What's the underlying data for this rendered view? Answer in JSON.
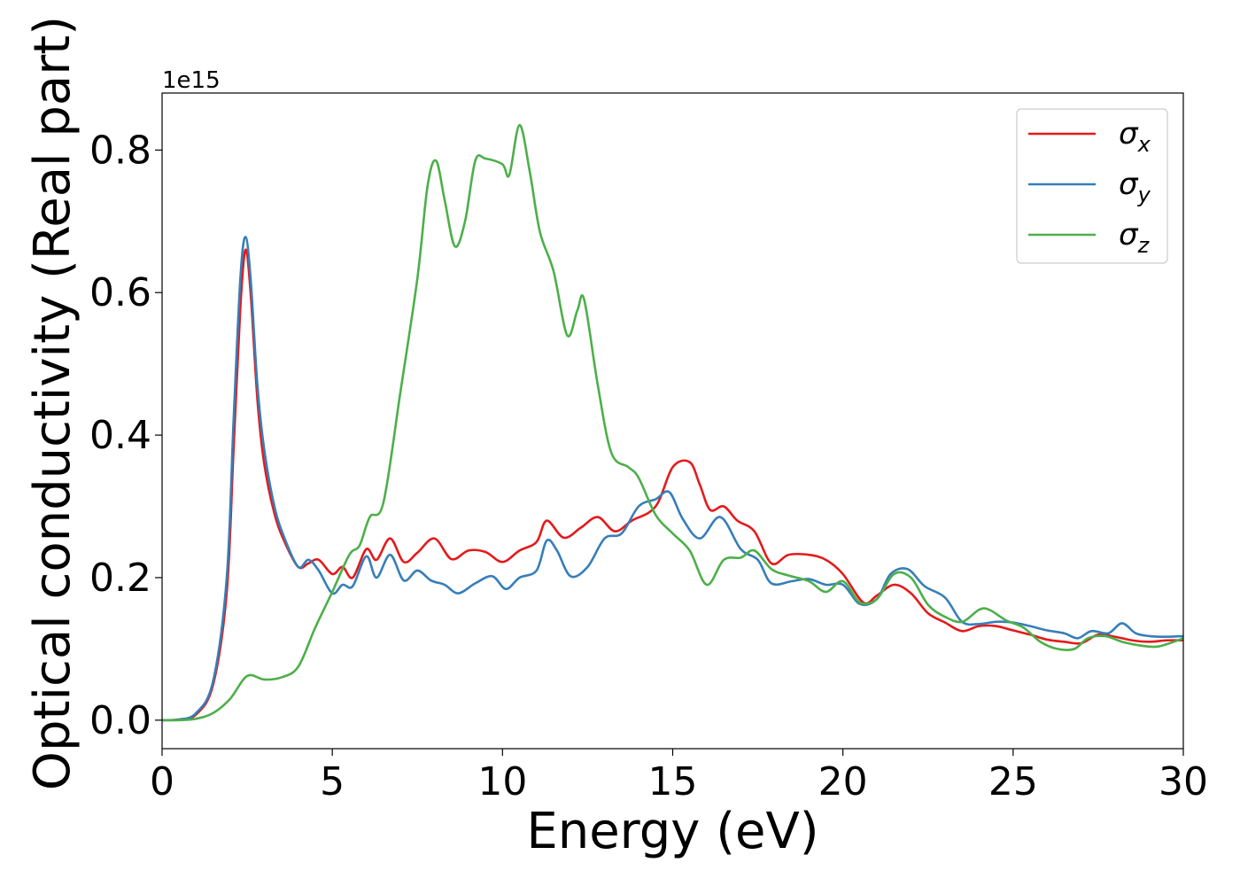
{
  "chart_data": {
    "type": "line",
    "title": "",
    "xlabel": "Energy (eV)",
    "ylabel": "Optical conductivity (Real part)",
    "y_offset_label": "1e15",
    "xlim": [
      0,
      30
    ],
    "ylim": [
      -0.04,
      0.88
    ],
    "x_ticks": [
      0,
      5,
      10,
      15,
      20,
      25,
      30
    ],
    "x_tick_labels": [
      "0",
      "5",
      "10",
      "15",
      "20",
      "25",
      "30"
    ],
    "y_ticks": [
      0.0,
      0.2,
      0.4,
      0.6,
      0.8
    ],
    "y_tick_labels": [
      "0.0",
      "0.2",
      "0.4",
      "0.6",
      "0.8"
    ],
    "grid": false,
    "legend_position": "top-right",
    "series": [
      {
        "name": "σx",
        "symbol": "σ",
        "subscript": "x",
        "color": "#e41a1c",
        "points": [
          [
            0,
            0
          ],
          [
            0.5,
            0.001
          ],
          [
            1.0,
            0.008
          ],
          [
            1.5,
            0.05
          ],
          [
            1.9,
            0.18
          ],
          [
            2.1,
            0.38
          ],
          [
            2.3,
            0.58
          ],
          [
            2.45,
            0.66
          ],
          [
            2.6,
            0.6
          ],
          [
            2.8,
            0.45
          ],
          [
            3.0,
            0.36
          ],
          [
            3.3,
            0.29
          ],
          [
            3.6,
            0.25
          ],
          [
            4.0,
            0.215
          ],
          [
            4.3,
            0.22
          ],
          [
            4.6,
            0.225
          ],
          [
            5.0,
            0.205
          ],
          [
            5.3,
            0.215
          ],
          [
            5.6,
            0.2
          ],
          [
            6.0,
            0.24
          ],
          [
            6.3,
            0.225
          ],
          [
            6.7,
            0.255
          ],
          [
            7.1,
            0.222
          ],
          [
            7.5,
            0.235
          ],
          [
            8.0,
            0.255
          ],
          [
            8.5,
            0.226
          ],
          [
            9.0,
            0.238
          ],
          [
            9.5,
            0.236
          ],
          [
            10.0,
            0.222
          ],
          [
            10.5,
            0.238
          ],
          [
            11.0,
            0.25
          ],
          [
            11.3,
            0.28
          ],
          [
            11.8,
            0.256
          ],
          [
            12.3,
            0.27
          ],
          [
            12.8,
            0.285
          ],
          [
            13.3,
            0.265
          ],
          [
            13.8,
            0.28
          ],
          [
            14.5,
            0.3
          ],
          [
            15.0,
            0.355
          ],
          [
            15.5,
            0.362
          ],
          [
            15.8,
            0.33
          ],
          [
            16.1,
            0.295
          ],
          [
            16.5,
            0.3
          ],
          [
            16.9,
            0.28
          ],
          [
            17.4,
            0.265
          ],
          [
            17.9,
            0.22
          ],
          [
            18.4,
            0.232
          ],
          [
            19.0,
            0.232
          ],
          [
            19.5,
            0.225
          ],
          [
            20.0,
            0.205
          ],
          [
            20.6,
            0.165
          ],
          [
            21.0,
            0.175
          ],
          [
            21.5,
            0.19
          ],
          [
            22.0,
            0.178
          ],
          [
            22.5,
            0.15
          ],
          [
            23.0,
            0.137
          ],
          [
            23.5,
            0.125
          ],
          [
            24.0,
            0.132
          ],
          [
            24.5,
            0.132
          ],
          [
            25.0,
            0.126
          ],
          [
            25.5,
            0.12
          ],
          [
            26.0,
            0.113
          ],
          [
            26.5,
            0.11
          ],
          [
            27.0,
            0.108
          ],
          [
            27.5,
            0.12
          ],
          [
            28.0,
            0.117
          ],
          [
            28.5,
            0.112
          ],
          [
            29.0,
            0.11
          ],
          [
            29.5,
            0.112
          ],
          [
            30.0,
            0.112
          ]
        ]
      },
      {
        "name": "σy",
        "symbol": "σ",
        "subscript": "y",
        "color": "#377eb8",
        "points": [
          [
            0,
            0
          ],
          [
            0.5,
            0.001
          ],
          [
            1.0,
            0.01
          ],
          [
            1.5,
            0.055
          ],
          [
            1.9,
            0.2
          ],
          [
            2.1,
            0.42
          ],
          [
            2.3,
            0.62
          ],
          [
            2.45,
            0.678
          ],
          [
            2.6,
            0.62
          ],
          [
            2.8,
            0.47
          ],
          [
            3.0,
            0.38
          ],
          [
            3.3,
            0.3
          ],
          [
            3.6,
            0.255
          ],
          [
            4.0,
            0.215
          ],
          [
            4.3,
            0.225
          ],
          [
            4.6,
            0.21
          ],
          [
            5.0,
            0.178
          ],
          [
            5.3,
            0.19
          ],
          [
            5.6,
            0.188
          ],
          [
            6.0,
            0.23
          ],
          [
            6.3,
            0.2
          ],
          [
            6.7,
            0.232
          ],
          [
            7.1,
            0.196
          ],
          [
            7.5,
            0.21
          ],
          [
            7.9,
            0.196
          ],
          [
            8.3,
            0.19
          ],
          [
            8.7,
            0.178
          ],
          [
            9.2,
            0.192
          ],
          [
            9.7,
            0.202
          ],
          [
            10.1,
            0.184
          ],
          [
            10.5,
            0.2
          ],
          [
            11.0,
            0.21
          ],
          [
            11.3,
            0.252
          ],
          [
            11.6,
            0.238
          ],
          [
            12.0,
            0.202
          ],
          [
            12.5,
            0.215
          ],
          [
            13.0,
            0.255
          ],
          [
            13.5,
            0.262
          ],
          [
            14.0,
            0.3
          ],
          [
            14.5,
            0.31
          ],
          [
            14.9,
            0.32
          ],
          [
            15.3,
            0.282
          ],
          [
            15.8,
            0.255
          ],
          [
            16.4,
            0.285
          ],
          [
            17.0,
            0.24
          ],
          [
            17.5,
            0.225
          ],
          [
            17.9,
            0.192
          ],
          [
            18.5,
            0.195
          ],
          [
            19.0,
            0.198
          ],
          [
            19.5,
            0.19
          ],
          [
            20.0,
            0.19
          ],
          [
            20.5,
            0.163
          ],
          [
            21.0,
            0.17
          ],
          [
            21.4,
            0.205
          ],
          [
            21.9,
            0.212
          ],
          [
            22.4,
            0.188
          ],
          [
            23.0,
            0.172
          ],
          [
            23.5,
            0.138
          ],
          [
            24.0,
            0.135
          ],
          [
            24.5,
            0.138
          ],
          [
            25.0,
            0.137
          ],
          [
            25.5,
            0.132
          ],
          [
            26.0,
            0.126
          ],
          [
            26.5,
            0.122
          ],
          [
            26.9,
            0.115
          ],
          [
            27.3,
            0.125
          ],
          [
            27.8,
            0.122
          ],
          [
            28.2,
            0.136
          ],
          [
            28.6,
            0.122
          ],
          [
            29.0,
            0.118
          ],
          [
            29.5,
            0.117
          ],
          [
            30.0,
            0.118
          ]
        ]
      },
      {
        "name": "σz",
        "symbol": "σ",
        "subscript": "z",
        "color": "#4daf4a",
        "points": [
          [
            0,
            0
          ],
          [
            0.5,
            0.0
          ],
          [
            1.0,
            0.002
          ],
          [
            1.5,
            0.01
          ],
          [
            2.0,
            0.03
          ],
          [
            2.5,
            0.062
          ],
          [
            3.0,
            0.057
          ],
          [
            3.5,
            0.06
          ],
          [
            4.0,
            0.075
          ],
          [
            4.5,
            0.13
          ],
          [
            5.0,
            0.18
          ],
          [
            5.5,
            0.232
          ],
          [
            5.8,
            0.245
          ],
          [
            6.1,
            0.285
          ],
          [
            6.5,
            0.305
          ],
          [
            7.0,
            0.46
          ],
          [
            7.5,
            0.62
          ],
          [
            7.8,
            0.75
          ],
          [
            8.05,
            0.785
          ],
          [
            8.3,
            0.73
          ],
          [
            8.6,
            0.665
          ],
          [
            8.9,
            0.7
          ],
          [
            9.2,
            0.785
          ],
          [
            9.5,
            0.788
          ],
          [
            10.0,
            0.78
          ],
          [
            10.2,
            0.765
          ],
          [
            10.5,
            0.835
          ],
          [
            10.8,
            0.77
          ],
          [
            11.1,
            0.685
          ],
          [
            11.5,
            0.63
          ],
          [
            11.9,
            0.54
          ],
          [
            12.2,
            0.575
          ],
          [
            12.4,
            0.59
          ],
          [
            12.8,
            0.47
          ],
          [
            13.2,
            0.375
          ],
          [
            13.7,
            0.355
          ],
          [
            14.0,
            0.34
          ],
          [
            14.5,
            0.288
          ],
          [
            15.0,
            0.262
          ],
          [
            15.5,
            0.238
          ],
          [
            16.0,
            0.19
          ],
          [
            16.5,
            0.225
          ],
          [
            17.0,
            0.228
          ],
          [
            17.4,
            0.238
          ],
          [
            17.9,
            0.212
          ],
          [
            18.4,
            0.203
          ],
          [
            19.0,
            0.195
          ],
          [
            19.5,
            0.18
          ],
          [
            20.0,
            0.195
          ],
          [
            20.5,
            0.165
          ],
          [
            21.0,
            0.17
          ],
          [
            21.5,
            0.205
          ],
          [
            22.0,
            0.2
          ],
          [
            22.5,
            0.162
          ],
          [
            23.0,
            0.145
          ],
          [
            23.5,
            0.138
          ],
          [
            24.0,
            0.155
          ],
          [
            24.3,
            0.155
          ],
          [
            24.8,
            0.14
          ],
          [
            25.3,
            0.13
          ],
          [
            25.8,
            0.11
          ],
          [
            26.3,
            0.1
          ],
          [
            26.8,
            0.1
          ],
          [
            27.2,
            0.115
          ],
          [
            27.7,
            0.118
          ],
          [
            28.2,
            0.11
          ],
          [
            28.7,
            0.105
          ],
          [
            29.2,
            0.103
          ],
          [
            29.6,
            0.108
          ],
          [
            30.0,
            0.115
          ]
        ]
      }
    ]
  }
}
